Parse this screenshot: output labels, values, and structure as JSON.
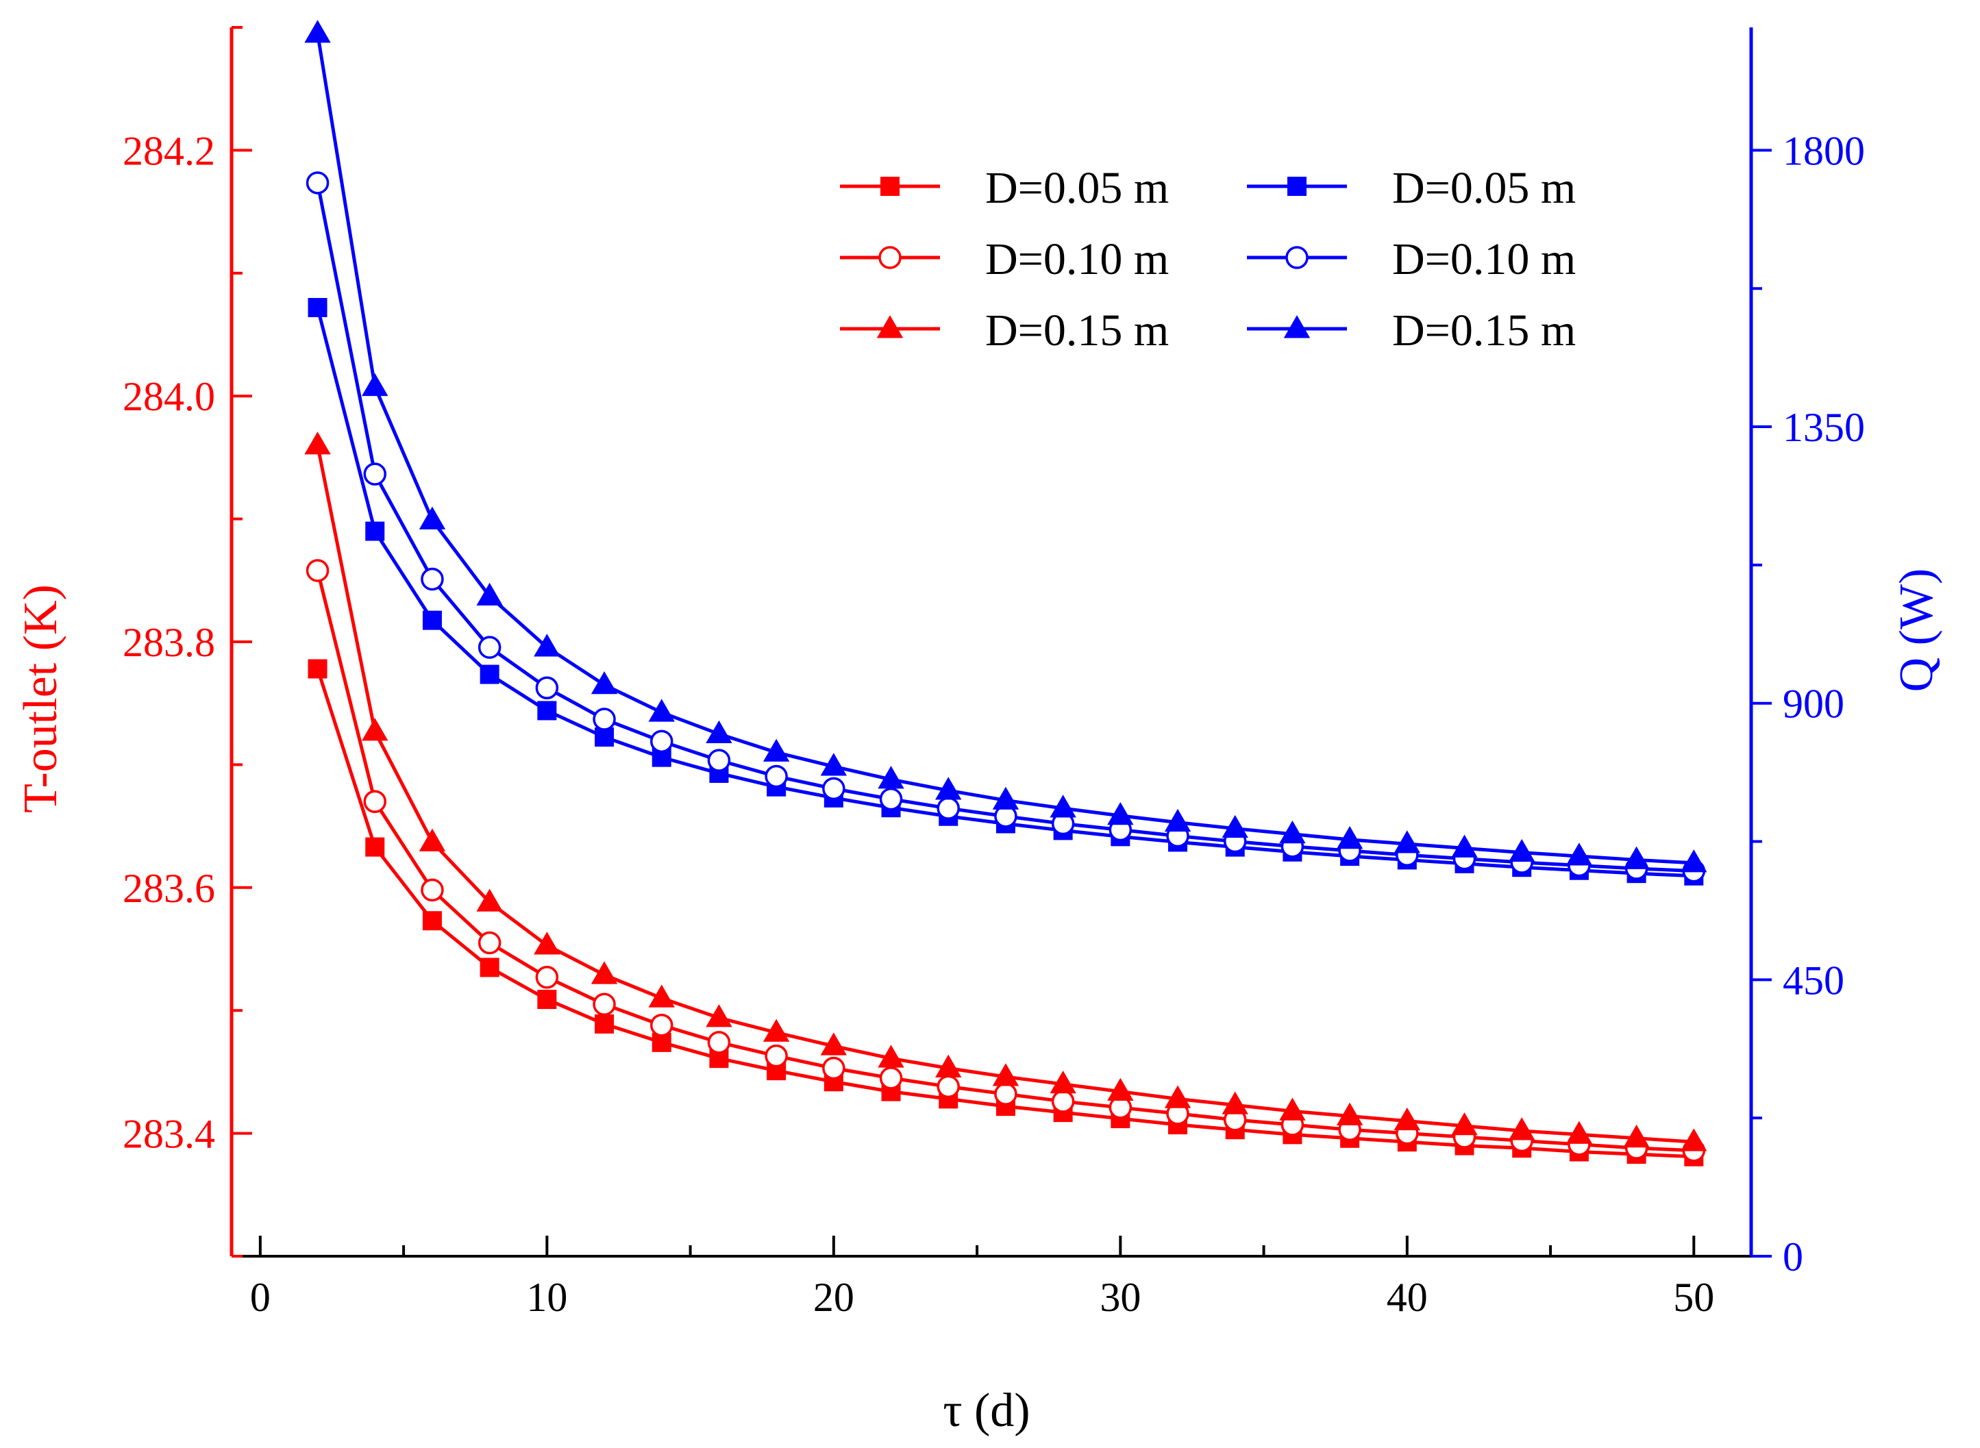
{
  "chart_data": {
    "type": "line",
    "xlabel": "τ (d)",
    "ylabel_left": "T-outlet (K)",
    "ylabel_right": "Q (W)",
    "xlim": [
      -1,
      52
    ],
    "ylim_left": [
      283.3,
      284.3
    ],
    "ylim_right": [
      0,
      2000
    ],
    "x_ticks": [
      0,
      10,
      20,
      30,
      40,
      50
    ],
    "x_tick_labels": [
      "0",
      "10",
      "20",
      "30",
      "40",
      "50"
    ],
    "y_left_ticks": [
      283.4,
      283.6,
      283.8,
      284.0,
      284.2
    ],
    "y_left_tick_labels": [
      "283.4",
      "283.6",
      "283.8",
      "284.0",
      "284.2"
    ],
    "y_right_ticks": [
      0,
      450,
      900,
      1350,
      1800
    ],
    "y_right_tick_labels": [
      "0",
      "450",
      "900",
      "1350",
      "1800"
    ],
    "colors": {
      "left": "#ff0000",
      "right": "#0000ff"
    },
    "legend_position": "top-right",
    "x": [
      2,
      4,
      6,
      8,
      10,
      12,
      14,
      16,
      18,
      20,
      22,
      24,
      26,
      28,
      30,
      32,
      34,
      36,
      38,
      40,
      42,
      44,
      46,
      48,
      50
    ],
    "series": [
      {
        "name": "D=0.05 m",
        "axis": "left",
        "color": "#ff0000",
        "marker": "square",
        "values": [
          283.778,
          283.633,
          283.573,
          283.535,
          283.509,
          283.489,
          283.474,
          283.461,
          283.451,
          283.442,
          283.434,
          283.428,
          283.422,
          283.417,
          283.412,
          283.407,
          283.403,
          283.399,
          283.396,
          283.393,
          283.39,
          283.388,
          283.385,
          283.383,
          283.381
        ]
      },
      {
        "name": "D=0.10 m",
        "axis": "left",
        "color": "#ff0000",
        "marker": "circle-open",
        "values": [
          283.858,
          283.67,
          283.598,
          283.555,
          283.527,
          283.505,
          283.488,
          283.474,
          283.463,
          283.453,
          283.445,
          283.438,
          283.432,
          283.426,
          283.421,
          283.416,
          283.411,
          283.407,
          283.403,
          283.4,
          283.397,
          283.394,
          283.391,
          283.388,
          283.386
        ]
      },
      {
        "name": "D=0.15 m",
        "axis": "left",
        "color": "#ff0000",
        "marker": "triangle",
        "values": [
          283.96,
          283.727,
          283.637,
          283.588,
          283.553,
          283.529,
          283.51,
          283.494,
          283.482,
          283.471,
          283.461,
          283.453,
          283.446,
          283.44,
          283.434,
          283.428,
          283.423,
          283.418,
          283.414,
          283.41,
          283.406,
          283.402,
          283.399,
          283.396,
          283.393
        ]
      },
      {
        "name": "D=0.05 m",
        "axis": "right",
        "color": "#0000ff",
        "marker": "square",
        "values": [
          1544,
          1180,
          1035,
          947,
          888,
          845,
          812,
          786,
          764,
          746,
          730,
          716,
          704,
          693,
          683,
          674,
          666,
          658,
          651,
          645,
          639,
          633,
          628,
          623,
          619
        ]
      },
      {
        "name": "D=0.10 m",
        "axis": "right",
        "color": "#0000ff",
        "marker": "circle-open",
        "values": [
          1747,
          1273,
          1102,
          991,
          925,
          874,
          838,
          807,
          781,
          761,
          744,
          729,
          716,
          704,
          694,
          684,
          675,
          667,
          660,
          653,
          647,
          641,
          636,
          631,
          627
        ]
      },
      {
        "name": "D=0.15 m",
        "axis": "right",
        "color": "#0000ff",
        "marker": "triangle",
        "values": [
          1990,
          1415,
          1198,
          1074,
          991,
          930,
          885,
          850,
          820,
          797,
          776,
          758,
          742,
          729,
          717,
          706,
          696,
          687,
          678,
          671,
          664,
          657,
          651,
          645,
          640
        ]
      }
    ]
  }
}
